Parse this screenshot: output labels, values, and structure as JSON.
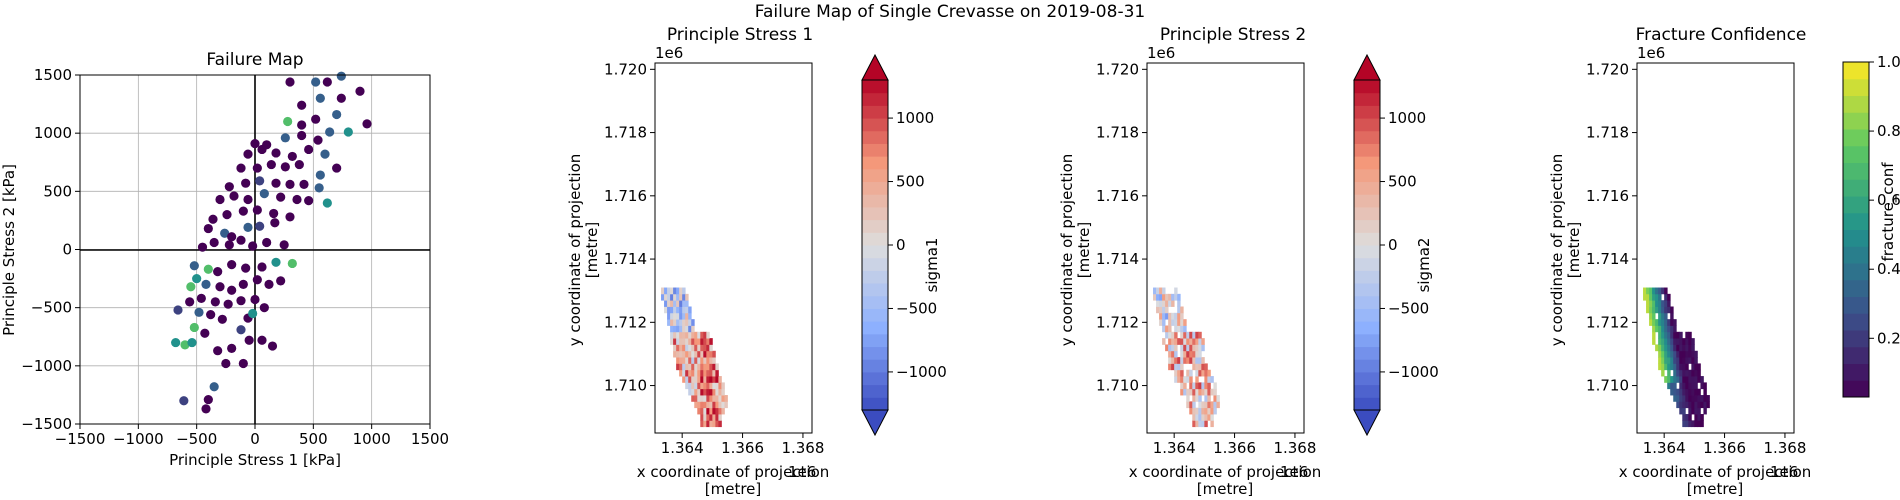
{
  "suptitle": "Failure Map of Single Crevasse on 2019-08-31",
  "panels": {
    "failure": {
      "title": "Failure Map",
      "xlabel": "Principle Stress 1 [kPa]",
      "ylabel": "Principle Stress 2 [kPa]",
      "ticks": [
        "−1500",
        "−1000",
        "−500",
        "0",
        "500",
        "1000",
        "1500"
      ]
    },
    "ps1": {
      "title": "Principle Stress 1",
      "xlabel": "x coordinate of projection",
      "xlabel2": "[metre]",
      "ylabel": "y coordinate of projection",
      "ylabel2": "[metre]",
      "xoffset": "1e6",
      "yoffset": "1e6",
      "xticks": [
        "1.364",
        "1.366",
        "1.368"
      ],
      "yticks": [
        "1.720",
        "1.718",
        "1.716",
        "1.714",
        "1.712",
        "1.710"
      ],
      "cbar_label": "sigma1",
      "cbar_ticks": [
        "1000",
        "500",
        "0",
        "−500",
        "−1000"
      ]
    },
    "ps2": {
      "title": "Principle Stress 2",
      "xlabel": "x coordinate of projection",
      "xlabel2": "[metre]",
      "ylabel": "y coordinate of projection",
      "ylabel2": "[metre]",
      "xoffset": "1e6",
      "yoffset": "1e6",
      "xticks": [
        "1.364",
        "1.366",
        "1.368"
      ],
      "yticks": [
        "1.720",
        "1.718",
        "1.716",
        "1.714",
        "1.712",
        "1.710"
      ],
      "cbar_label": "sigma2",
      "cbar_ticks": [
        "1000",
        "500",
        "0",
        "−500",
        "−1000"
      ]
    },
    "fc": {
      "title": "Fracture Confidence",
      "xlabel": "x coordinate of projection",
      "xlabel2": "[metre]",
      "ylabel": "y coordinate of projection",
      "ylabel2": "[metre]",
      "xoffset": "1e6",
      "yoffset": "1e6",
      "xticks": [
        "1.364",
        "1.366",
        "1.368"
      ],
      "yticks": [
        "1.720",
        "1.718",
        "1.716",
        "1.714",
        "1.712",
        "1.710"
      ],
      "cbar_label": "fracture_conf",
      "cbar_ticks": [
        "1.0",
        "0.8",
        "0.6",
        "0.4",
        "0.2"
      ]
    }
  },
  "colors": {
    "coolwarm_low": "#3b4cc0",
    "coolwarm_mid": "#dddddd",
    "coolwarm_high": "#b40426",
    "viridis": [
      "#440154",
      "#3b528b",
      "#21918c",
      "#5ec962",
      "#fde725"
    ]
  },
  "chart_data": [
    {
      "type": "scatter",
      "title": "Failure Map",
      "xlabel": "Principle Stress 1 [kPa]",
      "ylabel": "Principle Stress 2 [kPa]",
      "xlim": [
        -1500,
        1500
      ],
      "ylim": [
        -1500,
        1500
      ],
      "grid": true,
      "color_variable": "fracture_conf",
      "points": [
        {
          "x": -610,
          "y": -1300,
          "c": 0.2
        },
        {
          "x": -420,
          "y": -1370,
          "c": 0.0
        },
        {
          "x": -400,
          "y": -1290,
          "c": 0.0
        },
        {
          "x": -350,
          "y": -1180,
          "c": 0.3
        },
        {
          "x": -250,
          "y": -980,
          "c": 0.0
        },
        {
          "x": -100,
          "y": -980,
          "c": 0.0
        },
        {
          "x": -680,
          "y": -800,
          "c": 0.5
        },
        {
          "x": -600,
          "y": -820,
          "c": 0.7
        },
        {
          "x": -540,
          "y": -800,
          "c": 0.5
        },
        {
          "x": -430,
          "y": -720,
          "c": 0.0
        },
        {
          "x": -320,
          "y": -870,
          "c": 0.0
        },
        {
          "x": -200,
          "y": -850,
          "c": 0.0
        },
        {
          "x": -50,
          "y": -780,
          "c": 0.0
        },
        {
          "x": 60,
          "y": -780,
          "c": 0.0
        },
        {
          "x": 150,
          "y": -830,
          "c": 0.0
        },
        {
          "x": -520,
          "y": -670,
          "c": 0.7
        },
        {
          "x": -480,
          "y": -540,
          "c": 0.3
        },
        {
          "x": -380,
          "y": -560,
          "c": 0.0
        },
        {
          "x": -280,
          "y": -600,
          "c": 0.0
        },
        {
          "x": -120,
          "y": -690,
          "c": 0.2
        },
        {
          "x": -60,
          "y": -590,
          "c": 0.0
        },
        {
          "x": -660,
          "y": -520,
          "c": 0.2
        },
        {
          "x": -560,
          "y": -450,
          "c": 0.0
        },
        {
          "x": -460,
          "y": -420,
          "c": 0.0
        },
        {
          "x": -340,
          "y": -450,
          "c": 0.0
        },
        {
          "x": -230,
          "y": -470,
          "c": 0.0
        },
        {
          "x": -120,
          "y": -440,
          "c": 0.0
        },
        {
          "x": -20,
          "y": -550,
          "c": 0.5
        },
        {
          "x": 0,
          "y": -430,
          "c": 0.0
        },
        {
          "x": 80,
          "y": -500,
          "c": 0.0
        },
        {
          "x": -550,
          "y": -320,
          "c": 0.7
        },
        {
          "x": -500,
          "y": -250,
          "c": 0.5
        },
        {
          "x": -420,
          "y": -300,
          "c": 0.3
        },
        {
          "x": -300,
          "y": -320,
          "c": 0.0
        },
        {
          "x": -200,
          "y": -350,
          "c": 0.0
        },
        {
          "x": -100,
          "y": -300,
          "c": 0.0
        },
        {
          "x": 20,
          "y": -260,
          "c": 0.0
        },
        {
          "x": 120,
          "y": -300,
          "c": 0.0
        },
        {
          "x": 220,
          "y": -270,
          "c": 0.0
        },
        {
          "x": -520,
          "y": -140,
          "c": 0.3
        },
        {
          "x": -400,
          "y": -170,
          "c": 0.7
        },
        {
          "x": -320,
          "y": -190,
          "c": 0.0
        },
        {
          "x": -200,
          "y": -130,
          "c": 0.0
        },
        {
          "x": -80,
          "y": -160,
          "c": 0.0
        },
        {
          "x": 60,
          "y": -150,
          "c": 0.0
        },
        {
          "x": 180,
          "y": -110,
          "c": 0.5
        },
        {
          "x": 320,
          "y": -120,
          "c": 0.7
        },
        {
          "x": -450,
          "y": 20,
          "c": 0.0
        },
        {
          "x": -350,
          "y": 60,
          "c": 0.0
        },
        {
          "x": -220,
          "y": 40,
          "c": 0.0
        },
        {
          "x": -120,
          "y": 80,
          "c": 0.0
        },
        {
          "x": -20,
          "y": 30,
          "c": 0.0
        },
        {
          "x": 100,
          "y": 60,
          "c": 0.0
        },
        {
          "x": 250,
          "y": 40,
          "c": 0.0
        },
        {
          "x": -400,
          "y": 180,
          "c": 0.0
        },
        {
          "x": -260,
          "y": 140,
          "c": 0.3
        },
        {
          "x": -200,
          "y": 110,
          "c": 0.0
        },
        {
          "x": -60,
          "y": 190,
          "c": 0.3
        },
        {
          "x": 40,
          "y": 200,
          "c": 0.2
        },
        {
          "x": 170,
          "y": 230,
          "c": 0.0
        },
        {
          "x": -360,
          "y": 260,
          "c": 0.0
        },
        {
          "x": -240,
          "y": 300,
          "c": 0.0
        },
        {
          "x": -100,
          "y": 330,
          "c": 0.0
        },
        {
          "x": 20,
          "y": 340,
          "c": 0.0
        },
        {
          "x": 160,
          "y": 310,
          "c": 0.0
        },
        {
          "x": 300,
          "y": 280,
          "c": 0.0
        },
        {
          "x": -300,
          "y": 430,
          "c": 0.0
        },
        {
          "x": -180,
          "y": 460,
          "c": 0.0
        },
        {
          "x": -60,
          "y": 430,
          "c": 0.0
        },
        {
          "x": 80,
          "y": 480,
          "c": 0.3
        },
        {
          "x": 220,
          "y": 450,
          "c": 0.0
        },
        {
          "x": 360,
          "y": 430,
          "c": 0.0
        },
        {
          "x": 460,
          "y": 420,
          "c": 0.0
        },
        {
          "x": 620,
          "y": 400,
          "c": 0.5
        },
        {
          "x": -220,
          "y": 540,
          "c": 0.0
        },
        {
          "x": -80,
          "y": 570,
          "c": 0.0
        },
        {
          "x": 40,
          "y": 590,
          "c": 0.2
        },
        {
          "x": 180,
          "y": 570,
          "c": 0.0
        },
        {
          "x": 300,
          "y": 560,
          "c": 0.0
        },
        {
          "x": 420,
          "y": 560,
          "c": 0.0
        },
        {
          "x": 550,
          "y": 530,
          "c": 0.3
        },
        {
          "x": -120,
          "y": 700,
          "c": 0.0
        },
        {
          "x": 20,
          "y": 700,
          "c": 0.0
        },
        {
          "x": 140,
          "y": 730,
          "c": 0.0
        },
        {
          "x": 260,
          "y": 710,
          "c": 0.0
        },
        {
          "x": 380,
          "y": 730,
          "c": 0.0
        },
        {
          "x": 560,
          "y": 640,
          "c": 0.3
        },
        {
          "x": 700,
          "y": 700,
          "c": 0.0
        },
        {
          "x": -60,
          "y": 820,
          "c": 0.0
        },
        {
          "x": 60,
          "y": 860,
          "c": 0.0
        },
        {
          "x": 180,
          "y": 830,
          "c": 0.0
        },
        {
          "x": 320,
          "y": 800,
          "c": 0.0
        },
        {
          "x": 460,
          "y": 860,
          "c": 0.0
        },
        {
          "x": 600,
          "y": 820,
          "c": 0.3
        },
        {
          "x": 0,
          "y": 910,
          "c": 0.0
        },
        {
          "x": 100,
          "y": 900,
          "c": 0.0
        },
        {
          "x": 260,
          "y": 960,
          "c": 0.3
        },
        {
          "x": 400,
          "y": 980,
          "c": 0.0
        },
        {
          "x": 540,
          "y": 940,
          "c": 0.0
        },
        {
          "x": 640,
          "y": 1010,
          "c": 0.3
        },
        {
          "x": 800,
          "y": 1010,
          "c": 0.5
        },
        {
          "x": 280,
          "y": 1100,
          "c": 0.7
        },
        {
          "x": 400,
          "y": 1070,
          "c": 0.0
        },
        {
          "x": 520,
          "y": 1120,
          "c": 0.0
        },
        {
          "x": 700,
          "y": 1160,
          "c": 0.3
        },
        {
          "x": 960,
          "y": 1080,
          "c": 0.0
        },
        {
          "x": 400,
          "y": 1240,
          "c": 0.0
        },
        {
          "x": 560,
          "y": 1300,
          "c": 0.3
        },
        {
          "x": 740,
          "y": 1300,
          "c": 0.0
        },
        {
          "x": 900,
          "y": 1360,
          "c": 0.0
        },
        {
          "x": 300,
          "y": 1440,
          "c": 0.0
        },
        {
          "x": 520,
          "y": 1440,
          "c": 0.3
        },
        {
          "x": 620,
          "y": 1440,
          "c": 0.0
        },
        {
          "x": 740,
          "y": 1490,
          "c": 0.3
        }
      ]
    },
    {
      "type": "heatmap",
      "title": "Principle Stress 1",
      "variable": "sigma1",
      "xlabel": "x coordinate of projection [metre]",
      "ylabel": "y coordinate of projection [metre]",
      "xlim": [
        1363100.0,
        1368300.0
      ],
      "ylim": [
        1708500.0,
        1720200.0
      ],
      "clim": [
        -1300,
        1300
      ],
      "colormap": "coolwarm"
    },
    {
      "type": "heatmap",
      "title": "Principle Stress 2",
      "variable": "sigma2",
      "xlabel": "x coordinate of projection [metre]",
      "ylabel": "y coordinate of projection [metre]",
      "xlim": [
        1363100.0,
        1368300.0
      ],
      "ylim": [
        1708500.0,
        1720200.0
      ],
      "clim": [
        -1300,
        1300
      ],
      "colormap": "coolwarm"
    },
    {
      "type": "heatmap",
      "title": "Fracture Confidence",
      "variable": "fracture_conf",
      "xlabel": "x coordinate of projection [metre]",
      "ylabel": "y coordinate of projection [metre]",
      "xlim": [
        1363100.0,
        1368300.0
      ],
      "ylim": [
        1708500.0,
        1720200.0
      ],
      "clim": [
        0.03,
        1.0
      ],
      "colormap": "viridis"
    }
  ]
}
